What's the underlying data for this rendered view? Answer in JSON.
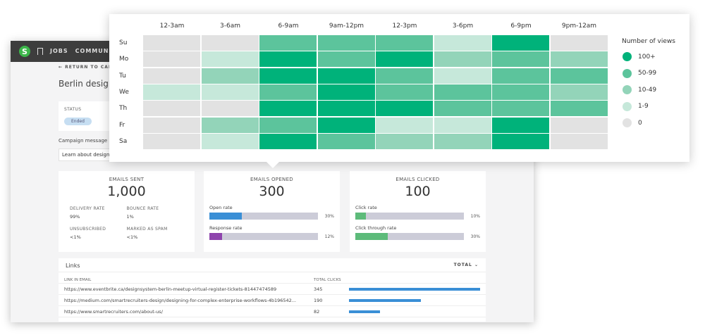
{
  "nav": {
    "logo": "S",
    "items": [
      "JOBS",
      "COMMUNITY"
    ]
  },
  "page": {
    "back": "RETURN TO CAMPAIGNS",
    "title": "Berlin design meetup",
    "status_label": "STATUS",
    "status": "Ended",
    "message_label": "Campaign message",
    "message_value": "Learn about design system"
  },
  "cards": [
    {
      "title": "EMAILS SENT",
      "value": "1,000",
      "stats": [
        {
          "label": "DELIVERY RATE",
          "value": "99%"
        },
        {
          "label": "BOUNCE RATE",
          "value": "1%"
        },
        {
          "label": "UNSUBSCRIBED",
          "value": "<1%"
        },
        {
          "label": "MARKED AS SPAM",
          "value": "<1%"
        }
      ]
    },
    {
      "title": "EMAILS OPENED",
      "value": "300",
      "bars": [
        {
          "label": "Open rate",
          "pct": 30,
          "text": "30%",
          "color": "#3a8fd6"
        },
        {
          "label": "Response rate",
          "pct": 12,
          "text": "12%",
          "color": "#8e44ad"
        }
      ]
    },
    {
      "title": "EMAILS CLICKED",
      "value": "100",
      "bars": [
        {
          "label": "Click rate",
          "pct": 10,
          "text": "10%",
          "color": "#5dbb7a"
        },
        {
          "label": "Click through rate",
          "pct": 30,
          "text": "30%",
          "color": "#5dbb7a"
        }
      ]
    }
  ],
  "links": {
    "title": "Links",
    "sort": "TOTAL",
    "col_link": "LINK IN EMAIL",
    "col_clicks": "TOTAL CLICKS",
    "rows": [
      {
        "url": "https://www.eventbrite.ca/designsystem-berlin-meetup-virtual-register-tickets-81447474589",
        "clicks": 345
      },
      {
        "url": "https://medium.com/smartrecruiters-design/designing-for-complex-enterprise-workflows-4b196542...",
        "clicks": 190
      },
      {
        "url": "https://www.smartrecruiters.com/about-us/",
        "clicks": 82
      }
    ]
  },
  "chart_data": {
    "type": "heatmap",
    "x": [
      "12-3am",
      "3-6am",
      "6-9am",
      "9am-12pm",
      "12-3pm",
      "3-6pm",
      "6-9pm",
      "9pm-12am"
    ],
    "y": [
      "Su",
      "Mo",
      "Tu",
      "We",
      "Th",
      "Fr",
      "Sa"
    ],
    "legend_title": "Number of views",
    "legend_placement": "right",
    "levels": [
      {
        "label": "100+",
        "color": "#00b27a"
      },
      {
        "label": "50-99",
        "color": "#5cc49c"
      },
      {
        "label": "10-49",
        "color": "#93d4b9"
      },
      {
        "label": "1-9",
        "color": "#c6e8da"
      },
      {
        "label": "0",
        "color": "#e2e2e2"
      }
    ],
    "values": [
      [
        "0",
        "0",
        "50-99",
        "50-99",
        "50-99",
        "1-9",
        "100+",
        "0"
      ],
      [
        "0",
        "1-9",
        "100+",
        "50-99",
        "100+",
        "10-49",
        "50-99",
        "10-49"
      ],
      [
        "0",
        "10-49",
        "100+",
        "100+",
        "50-99",
        "1-9",
        "50-99",
        "50-99"
      ],
      [
        "1-9",
        "1-9",
        "50-99",
        "100+",
        "50-99",
        "50-99",
        "50-99",
        "10-49"
      ],
      [
        "0",
        "0",
        "100+",
        "100+",
        "100+",
        "50-99",
        "50-99",
        "50-99"
      ],
      [
        "0",
        "10-49",
        "50-99",
        "100+",
        "1-9",
        "1-9",
        "100+",
        "0"
      ],
      [
        "0",
        "1-9",
        "100+",
        "50-99",
        "10-49",
        "10-49",
        "100+",
        "0"
      ]
    ]
  }
}
